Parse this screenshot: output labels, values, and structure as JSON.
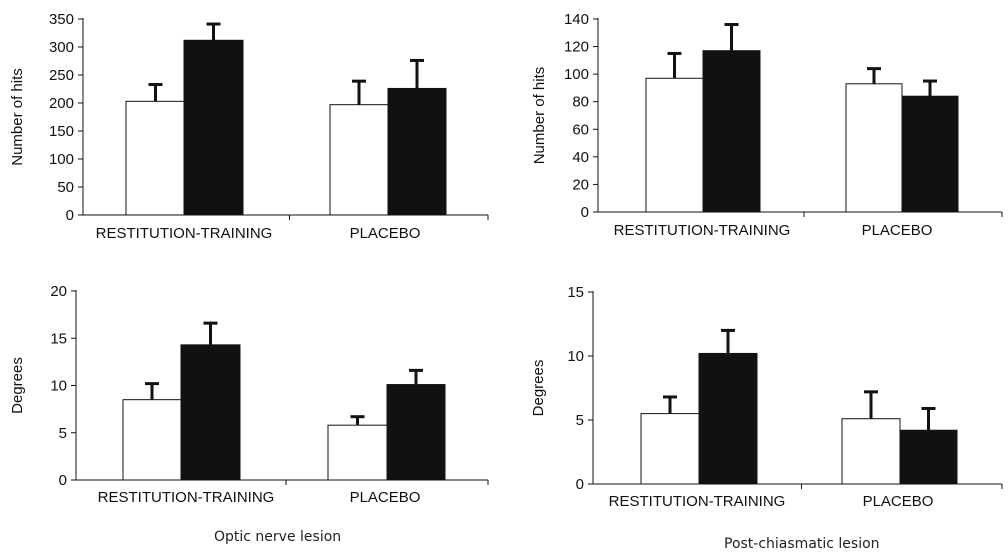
{
  "captions": {
    "left": "Optic nerve lesion",
    "right": "Post-chiasmatic lesion"
  },
  "colors": {
    "control_bar": "#ffffff",
    "trained_bar": "#111111",
    "axis": "#111111"
  },
  "chart_data": [
    {
      "id": "optic-hits",
      "type": "bar",
      "title": "",
      "xlabel": "",
      "ylabel": "Number of hits",
      "ylim": [
        0,
        350
      ],
      "yticks": [
        "0",
        "50",
        "100",
        "150",
        "200",
        "250",
        "300",
        "350"
      ],
      "categories": [
        "RESTITUTION-TRAINING",
        "PLACEBO"
      ],
      "series": [
        {
          "values": [
            203,
            197
          ],
          "errors": [
            30,
            42
          ]
        },
        {
          "values": [
            312,
            226
          ],
          "errors": [
            29,
            50
          ]
        }
      ],
      "grid": false,
      "legend": "none"
    },
    {
      "id": "postchiasm-hits",
      "type": "bar",
      "title": "",
      "xlabel": "",
      "ylabel": "Number of hits",
      "ylim": [
        0,
        140
      ],
      "yticks": [
        "0",
        "20",
        "40",
        "60",
        "80",
        "100",
        "120",
        "140"
      ],
      "categories": [
        "RESTITUTION-TRAINING",
        "PLACEBO"
      ],
      "series": [
        {
          "values": [
            97,
            93
          ],
          "errors": [
            18,
            11
          ]
        },
        {
          "values": [
            117,
            84
          ],
          "errors": [
            19,
            11
          ]
        }
      ],
      "grid": false,
      "legend": "none"
    },
    {
      "id": "optic-degrees",
      "type": "bar",
      "title": "",
      "xlabel": "",
      "ylabel": "Degrees",
      "ylim": [
        0,
        20
      ],
      "yticks": [
        "0",
        "5",
        "10",
        "15",
        "20"
      ],
      "categories": [
        "RESTITUTION-TRAINING",
        "PLACEBO"
      ],
      "series": [
        {
          "values": [
            8.5,
            5.8
          ],
          "errors": [
            1.7,
            0.9
          ]
        },
        {
          "values": [
            14.3,
            10.1
          ],
          "errors": [
            2.3,
            1.5
          ]
        }
      ],
      "grid": false,
      "legend": "none"
    },
    {
      "id": "postchiasm-degrees",
      "type": "bar",
      "title": "",
      "xlabel": "",
      "ylabel": "Degrees",
      "ylim": [
        0,
        15
      ],
      "yticks": [
        "0",
        "5",
        "10",
        "15"
      ],
      "categories": [
        "RESTITUTION-TRAINING",
        "PLACEBO"
      ],
      "series": [
        {
          "values": [
            5.5,
            5.1
          ],
          "errors": [
            1.3,
            2.1
          ]
        },
        {
          "values": [
            10.2,
            4.2
          ],
          "errors": [
            1.8,
            1.7
          ]
        }
      ],
      "grid": false,
      "legend": "none"
    }
  ]
}
